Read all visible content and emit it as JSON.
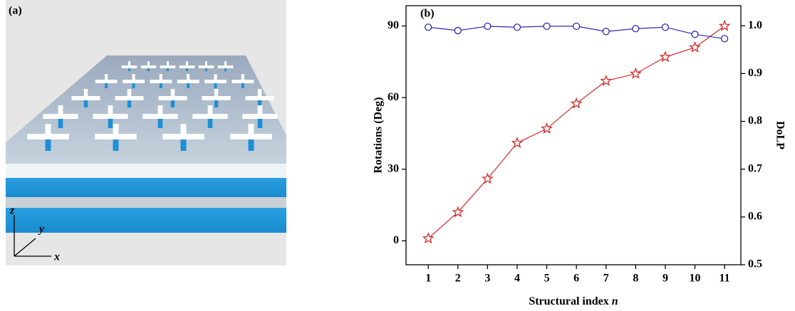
{
  "panel_a": {
    "label": "(a)",
    "axis_labels": [
      "z",
      "y",
      "x"
    ]
  },
  "chart_data": {
    "type": "line",
    "annotation": "(b)",
    "x_label": [
      "Structural index",
      "n"
    ],
    "y_label": "Rotations (Deg)",
    "y2_label": "DoLP",
    "x": [
      1,
      2,
      3,
      4,
      5,
      6,
      7,
      8,
      9,
      10,
      11
    ],
    "xlim": [
      0.25,
      11.55
    ],
    "xticks": [
      1,
      2,
      3,
      4,
      5,
      6,
      7,
      8,
      9,
      10,
      11
    ],
    "ylim": [
      -10,
      98.5
    ],
    "yticks": [
      0,
      30,
      60,
      90
    ],
    "y2lim": [
      0.5,
      1.042
    ],
    "y2ticks": [
      0.5,
      0.6,
      0.7,
      0.8,
      0.9,
      {
        "value": 1,
        "label": "1.0"
      }
    ],
    "series": [
      {
        "color": "#d62728",
        "marker": "star",
        "values": [
          1,
          12,
          26,
          41,
          47,
          57.5,
          67,
          70,
          77,
          81,
          90
        ]
      },
      {
        "color": "#2b2bb0",
        "marker": "circle",
        "axis": "y2",
        "values": [
          0.997,
          0.99,
          0.999,
          0.997,
          0.999,
          0.999,
          0.988,
          0.994,
          0.997,
          0.982,
          0.973
        ]
      }
    ]
  }
}
